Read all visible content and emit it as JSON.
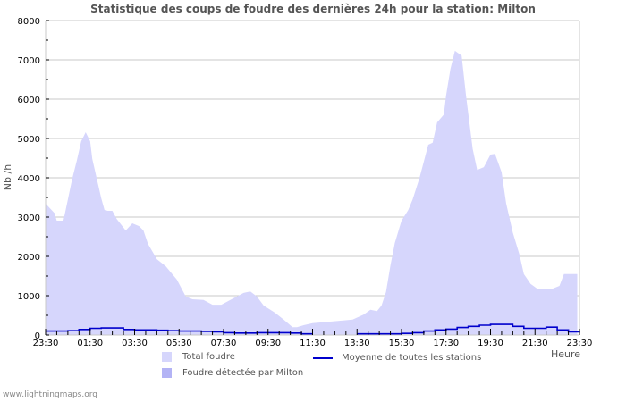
{
  "title": "Statistique des coups de foudre des dernières 24h pour la station: Milton",
  "footer": "www.lightningmaps.org",
  "legend": {
    "total": "Total foudre",
    "average": "Moyenne de toutes les stations",
    "station": "Foudre détectée par Milton"
  },
  "colors": {
    "total_fill": "#d6d6fc",
    "station_fill": "#b3b3f5",
    "average_line": "#0000cc",
    "grid": "#c8c8c8"
  },
  "chart_data": {
    "type": "area",
    "title": "Statistique des coups de foudre des dernières 24h pour la station: Milton",
    "xlabel": "Heure",
    "ylabel": "Nb /h",
    "ylim": [
      0,
      8000
    ],
    "yticks": [
      0,
      1000,
      2000,
      3000,
      4000,
      5000,
      6000,
      7000,
      8000
    ],
    "xticks": [
      "23:30",
      "01:30",
      "03:30",
      "05:30",
      "07:30",
      "09:30",
      "11:30",
      "13:30",
      "15:30",
      "17:30",
      "19:30",
      "21:30",
      "23:30"
    ],
    "grid": true,
    "legend_position": "bottom",
    "x_hours_since_start": [
      0,
      0.4,
      0.5,
      0.8,
      1.0,
      1.2,
      1.4,
      1.6,
      1.8,
      2.0,
      2.1,
      2.3,
      2.5,
      2.65,
      2.8,
      3.0,
      3.2,
      3.6,
      3.9,
      4.2,
      4.4,
      4.6,
      5.0,
      5.4,
      5.9,
      6.3,
      6.6,
      7.1,
      7.5,
      7.9,
      8.9,
      9.2,
      9.5,
      9.8,
      10.3,
      10.7,
      11.1,
      11.3,
      11.6,
      12.0,
      12.8,
      13.8,
      14.3,
      14.6,
      14.9,
      15.1,
      15.3,
      15.5,
      15.7,
      16.0,
      16.3,
      16.5,
      16.8,
      17.2,
      17.4,
      17.6,
      17.9,
      18.0,
      18.2,
      18.4,
      18.7,
      18.9,
      19.2,
      19.4,
      19.7,
      20.0,
      20.2,
      20.5,
      20.7,
      21.0,
      21.3,
      21.5,
      21.8,
      22.1,
      22.4,
      22.7,
      23.1,
      23.3,
      23.9
    ],
    "series": [
      {
        "name": "Total foudre",
        "values": [
          3340,
          3100,
          2910,
          2910,
          3450,
          3980,
          4430,
          4930,
          5160,
          4930,
          4480,
          3980,
          3480,
          3180,
          3160,
          3160,
          2950,
          2660,
          2840,
          2770,
          2660,
          2320,
          1930,
          1750,
          1410,
          980,
          910,
          890,
          770,
          770,
          1070,
          1110,
          980,
          750,
          570,
          390,
          200,
          200,
          250,
          300,
          340,
          390,
          520,
          640,
          610,
          750,
          1090,
          1770,
          2340,
          2910,
          3180,
          3450,
          3980,
          4840,
          4890,
          5410,
          5610,
          6090,
          6770,
          7230,
          7110,
          6090,
          4730,
          4200,
          4270,
          4590,
          4610,
          4140,
          3360,
          2610,
          2050,
          1550,
          1300,
          1180,
          1160,
          1160,
          1250,
          1550,
          1550
        ]
      },
      {
        "name": "Moyenne de toutes les stations",
        "x_half_hours": [
          "23:30",
          "00:00",
          "00:30",
          "01:00",
          "01:30",
          "02:00",
          "02:30",
          "03:00",
          "03:30",
          "04:00",
          "04:30",
          "05:00",
          "05:30",
          "06:00",
          "06:30",
          "07:00",
          "07:30",
          "08:00",
          "08:30",
          "09:00",
          "09:30",
          "10:00",
          "10:30",
          "11:00",
          "11:30",
          "12:00",
          "12:30",
          "13:00",
          "13:30",
          "14:00",
          "14:30",
          "15:00",
          "15:30",
          "16:00",
          "16:30",
          "17:00",
          "17:30",
          "18:00",
          "18:30",
          "19:00",
          "19:30",
          "20:00",
          "20:30",
          "21:00",
          "21:30",
          "22:00",
          "22:30",
          "23:00",
          "23:30"
        ],
        "values": [
          100,
          100,
          110,
          140,
          170,
          180,
          180,
          140,
          130,
          130,
          120,
          110,
          100,
          100,
          90,
          80,
          60,
          50,
          50,
          60,
          60,
          60,
          50,
          30,
          null,
          null,
          null,
          null,
          30,
          30,
          30,
          30,
          40,
          60,
          100,
          130,
          150,
          190,
          220,
          250,
          270,
          270,
          220,
          170,
          170,
          200,
          130,
          80,
          60
        ]
      },
      {
        "name": "Foudre détectée par Milton",
        "values": []
      }
    ]
  }
}
